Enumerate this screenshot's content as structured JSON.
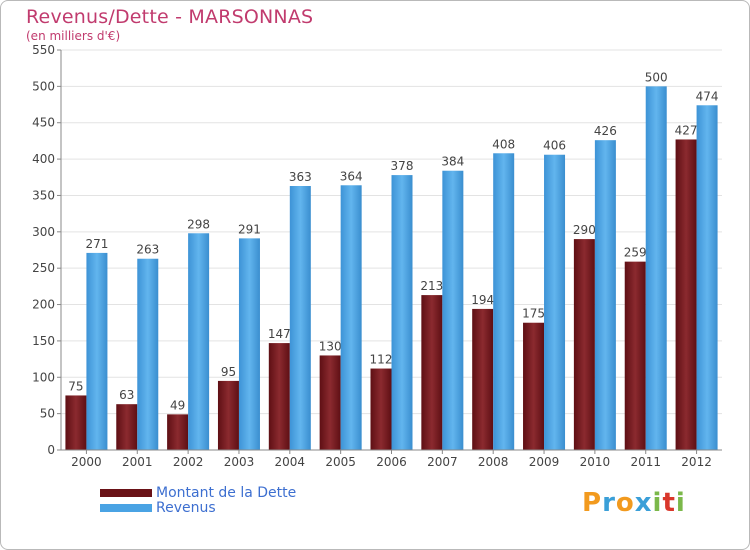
{
  "title": "Revenus/Dette - MARSONNAS",
  "subtitle": "(en milliers d'€)",
  "legend": {
    "dette": "Montant de la Dette",
    "revenus": "Revenus"
  },
  "logo": {
    "letters": [
      "P",
      "r",
      "o",
      "x",
      "i",
      "t",
      "i"
    ],
    "colors": [
      "#f29a1e",
      "#3a9fd8",
      "#f29a1e",
      "#3a9fd8",
      "#7bb84a",
      "#d9372b",
      "#7bb84a"
    ]
  },
  "colors": {
    "dette": "#7a1a1f",
    "revenus": "#4aa3e4",
    "title": "#c13b6e",
    "legend_text": "#3d6fd0"
  },
  "chart_data": {
    "type": "bar",
    "title": "Revenus/Dette - MARSONNAS",
    "ylabel": "(en milliers d'€)",
    "xlabel": "",
    "ylim": [
      0,
      550
    ],
    "yticks": [
      0,
      50,
      100,
      150,
      200,
      250,
      300,
      350,
      400,
      450,
      500,
      550
    ],
    "grid": true,
    "legend_position": "bottom-left",
    "categories": [
      "2000",
      "2001",
      "2002",
      "2003",
      "2004",
      "2005",
      "2006",
      "2007",
      "2008",
      "2009",
      "2010",
      "2011",
      "2012"
    ],
    "series": [
      {
        "name": "Montant de la Dette",
        "values": [
          75,
          63,
          49,
          95,
          147,
          130,
          112,
          213,
          194,
          175,
          290,
          259,
          427
        ]
      },
      {
        "name": "Revenus",
        "values": [
          271,
          263,
          298,
          291,
          363,
          364,
          378,
          384,
          408,
          406,
          426,
          500,
          474
        ]
      }
    ]
  }
}
